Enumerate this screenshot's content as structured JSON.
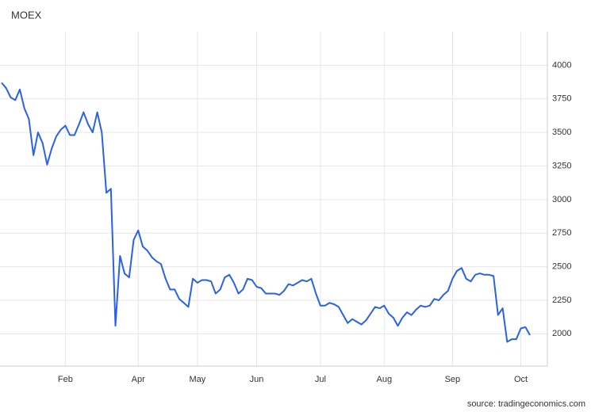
{
  "chart_data": {
    "type": "line",
    "title": "MOEX",
    "source": "source: tradingeconomics.com",
    "categories": [
      null,
      null,
      null,
      null,
      null,
      null,
      null,
      null,
      null,
      null,
      null,
      null,
      null,
      null,
      "Feb",
      null,
      null,
      null,
      null,
      null,
      null,
      null,
      null,
      null,
      null,
      null,
      null,
      null,
      null,
      null,
      "Apr",
      null,
      null,
      null,
      null,
      null,
      null,
      null,
      null,
      null,
      null,
      null,
      null,
      "May",
      null,
      null,
      null,
      null,
      null,
      null,
      null,
      null,
      null,
      null,
      null,
      null,
      "Jun",
      null,
      null,
      null,
      null,
      null,
      null,
      null,
      null,
      null,
      null,
      null,
      null,
      null,
      "Jul",
      null,
      null,
      null,
      null,
      null,
      null,
      null,
      null,
      null,
      null,
      null,
      null,
      null,
      "Aug",
      null,
      null,
      null,
      null,
      null,
      null,
      null,
      null,
      null,
      null,
      null,
      null,
      null,
      null,
      "Sep",
      null,
      null,
      null,
      null,
      null,
      null,
      null,
      null,
      null,
      null,
      null,
      null,
      null,
      null,
      "Oct",
      null,
      null
    ],
    "series": [
      {
        "name": "MOEX",
        "color": "#2962e8",
        "values": [
          3870,
          3830,
          3760,
          3740,
          3820,
          3680,
          3600,
          3330,
          3500,
          3420,
          3260,
          3380,
          3470,
          3520,
          3550,
          3480,
          3480,
          3560,
          3650,
          3560,
          3500,
          3650,
          3500,
          3050,
          3080,
          2060,
          2580,
          2450,
          2420,
          2700,
          2770,
          2650,
          2620,
          2570,
          2540,
          2520,
          2410,
          2330,
          2330,
          2260,
          2230,
          2200,
          2410,
          2380,
          2400,
          2400,
          2390,
          2300,
          2330,
          2420,
          2440,
          2380,
          2300,
          2330,
          2410,
          2400,
          2350,
          2340,
          2300,
          2300,
          2300,
          2290,
          2320,
          2370,
          2360,
          2380,
          2400,
          2390,
          2410,
          2300,
          2210,
          2210,
          2230,
          2220,
          2200,
          2140,
          2080,
          2110,
          2090,
          2070,
          2100,
          2150,
          2200,
          2190,
          2210,
          2150,
          2120,
          2060,
          2120,
          2160,
          2140,
          2180,
          2210,
          2200,
          2210,
          2260,
          2250,
          2290,
          2320,
          2410,
          2470,
          2490,
          2410,
          2390,
          2440,
          2450,
          2440,
          2440,
          2430,
          2140,
          2190,
          1940,
          1960,
          1960,
          2040,
          2050,
          1990
        ]
      }
    ],
    "ylim": [
      1760,
      4250
    ],
    "yticks": [
      2000,
      2250,
      2500,
      2750,
      3000,
      3250,
      3500,
      3750,
      4000
    ],
    "grid": true
  }
}
